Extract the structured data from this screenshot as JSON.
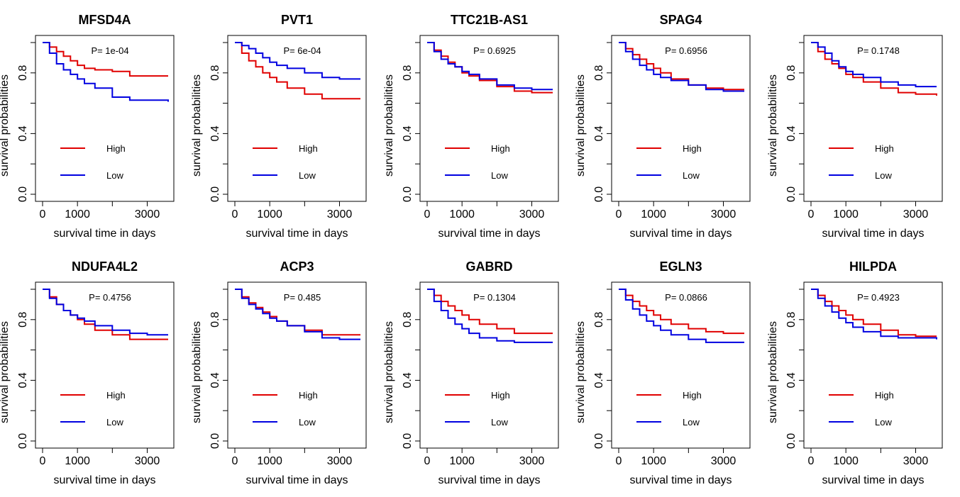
{
  "chart_data": [
    {
      "type": "line",
      "title": "MFSD4A",
      "pvalue": "P= 1e-04",
      "xlabel": "survival time in days",
      "ylabel": "survival probabilities",
      "xlim": [
        0,
        3600
      ],
      "ylim": [
        0,
        1
      ],
      "xticks": [
        0,
        1000,
        3000
      ],
      "xtick_labels": [
        "0",
        "1000",
        "3000"
      ],
      "yticks": [
        0,
        0.4,
        0.8
      ],
      "ytick_labels": [
        "0.0",
        "0.4",
        "0.8"
      ],
      "legend_position": "bottom-left",
      "colors": {
        "High": "#e00000",
        "Low": "#0000e0"
      },
      "series": [
        {
          "name": "High",
          "x": [
            0,
            200,
            400,
            600,
            800,
            1000,
            1200,
            1500,
            2000,
            2500,
            3000,
            3600
          ],
          "values": [
            1,
            0.97,
            0.94,
            0.91,
            0.88,
            0.85,
            0.83,
            0.82,
            0.81,
            0.78,
            0.78,
            0.78
          ]
        },
        {
          "name": "Low",
          "x": [
            0,
            200,
            400,
            600,
            800,
            1000,
            1200,
            1500,
            2000,
            2500,
            3000,
            3600
          ],
          "values": [
            1,
            0.93,
            0.86,
            0.82,
            0.79,
            0.76,
            0.73,
            0.7,
            0.64,
            0.62,
            0.62,
            0.61
          ]
        }
      ]
    },
    {
      "type": "line",
      "title": "PVT1",
      "pvalue": "P= 6e-04",
      "xlabel": "survival time in days",
      "ylabel": "survival probabilities",
      "xlim": [
        0,
        3600
      ],
      "ylim": [
        0,
        1
      ],
      "xticks": [
        0,
        1000,
        3000
      ],
      "xtick_labels": [
        "0",
        "1000",
        "3000"
      ],
      "yticks": [
        0,
        0.4,
        0.8
      ],
      "ytick_labels": [
        "0.0",
        "0.4",
        "0.8"
      ],
      "legend_position": "bottom-left",
      "colors": {
        "High": "#e00000",
        "Low": "#0000e0"
      },
      "series": [
        {
          "name": "High",
          "x": [
            0,
            200,
            400,
            600,
            800,
            1000,
            1200,
            1500,
            2000,
            2500,
            3000,
            3600
          ],
          "values": [
            1,
            0.93,
            0.88,
            0.84,
            0.8,
            0.77,
            0.74,
            0.7,
            0.66,
            0.63,
            0.63,
            0.63
          ]
        },
        {
          "name": "Low",
          "x": [
            0,
            200,
            400,
            600,
            800,
            1000,
            1200,
            1500,
            2000,
            2500,
            3000,
            3600
          ],
          "values": [
            1,
            0.98,
            0.96,
            0.93,
            0.9,
            0.87,
            0.85,
            0.83,
            0.8,
            0.77,
            0.76,
            0.76
          ]
        }
      ]
    },
    {
      "type": "line",
      "title": "TTC21B-AS1",
      "pvalue": "P= 0.6925",
      "xlabel": "survival time in days",
      "ylabel": "survival probabilities",
      "xlim": [
        0,
        3600
      ],
      "ylim": [
        0,
        1
      ],
      "xticks": [
        0,
        1000,
        3000
      ],
      "xtick_labels": [
        "0",
        "1000",
        "3000"
      ],
      "yticks": [
        0,
        0.4,
        0.8
      ],
      "ytick_labels": [
        "0.0",
        "0.4",
        "0.8"
      ],
      "legend_position": "bottom-left",
      "colors": {
        "High": "#e00000",
        "Low": "#0000e0"
      },
      "series": [
        {
          "name": "High",
          "x": [
            0,
            200,
            400,
            600,
            800,
            1000,
            1200,
            1500,
            2000,
            2500,
            3000,
            3600
          ],
          "values": [
            1,
            0.95,
            0.91,
            0.87,
            0.84,
            0.8,
            0.78,
            0.75,
            0.71,
            0.68,
            0.67,
            0.67
          ]
        },
        {
          "name": "Low",
          "x": [
            0,
            200,
            400,
            600,
            800,
            1000,
            1200,
            1500,
            2000,
            2500,
            3000,
            3600
          ],
          "values": [
            1,
            0.94,
            0.89,
            0.86,
            0.84,
            0.81,
            0.79,
            0.76,
            0.72,
            0.7,
            0.69,
            0.69
          ]
        }
      ]
    },
    {
      "type": "line",
      "title": "SPAG4",
      "pvalue": "P= 0.6956",
      "xlabel": "survival time in days",
      "ylabel": "survival probabilities",
      "xlim": [
        0,
        3600
      ],
      "ylim": [
        0,
        1
      ],
      "xticks": [
        0,
        1000,
        3000
      ],
      "xtick_labels": [
        "0",
        "1000",
        "3000"
      ],
      "yticks": [
        0,
        0.4,
        0.8
      ],
      "ytick_labels": [
        "0.0",
        "0.4",
        "0.8"
      ],
      "legend_position": "bottom-left",
      "colors": {
        "High": "#e00000",
        "Low": "#0000e0"
      },
      "series": [
        {
          "name": "High",
          "x": [
            0,
            200,
            400,
            600,
            800,
            1000,
            1200,
            1500,
            2000,
            2500,
            3000,
            3600
          ],
          "values": [
            1,
            0.96,
            0.92,
            0.89,
            0.86,
            0.83,
            0.8,
            0.76,
            0.72,
            0.7,
            0.69,
            0.69
          ]
        },
        {
          "name": "Low",
          "x": [
            0,
            200,
            400,
            600,
            800,
            1000,
            1200,
            1500,
            2000,
            2500,
            3000,
            3600
          ],
          "values": [
            1,
            0.94,
            0.89,
            0.85,
            0.82,
            0.79,
            0.77,
            0.75,
            0.72,
            0.69,
            0.68,
            0.68
          ]
        }
      ]
    },
    {
      "type": "line",
      "title": "",
      "pvalue": "P= 0.1748",
      "xlabel": "survival time in days",
      "ylabel": "survival probabilities",
      "xlim": [
        0,
        3600
      ],
      "ylim": [
        0,
        1
      ],
      "xticks": [
        0,
        1000,
        3000
      ],
      "xtick_labels": [
        "0",
        "1000",
        "3000"
      ],
      "yticks": [
        0,
        0.4,
        0.8
      ],
      "ytick_labels": [
        "0.0",
        "0.4",
        "0.8"
      ],
      "legend_position": "bottom-left",
      "colors": {
        "High": "#e00000",
        "Low": "#0000e0"
      },
      "series": [
        {
          "name": "High",
          "x": [
            0,
            200,
            400,
            600,
            800,
            1000,
            1200,
            1500,
            2000,
            2500,
            3000,
            3600
          ],
          "values": [
            1,
            0.94,
            0.89,
            0.86,
            0.83,
            0.79,
            0.77,
            0.74,
            0.7,
            0.67,
            0.66,
            0.65
          ]
        },
        {
          "name": "Low",
          "x": [
            0,
            200,
            400,
            600,
            800,
            1000,
            1200,
            1500,
            2000,
            2500,
            3000,
            3600
          ],
          "values": [
            1,
            0.97,
            0.93,
            0.88,
            0.84,
            0.81,
            0.79,
            0.77,
            0.74,
            0.72,
            0.71,
            0.71
          ]
        }
      ]
    },
    {
      "type": "line",
      "title": "NDUFA4L2",
      "pvalue": "P= 0.4756",
      "xlabel": "survival time in days",
      "ylabel": "survival probabilities",
      "xlim": [
        0,
        3600
      ],
      "ylim": [
        0,
        1
      ],
      "xticks": [
        0,
        1000,
        3000
      ],
      "xtick_labels": [
        "0",
        "1000",
        "3000"
      ],
      "yticks": [
        0,
        0.4,
        0.8
      ],
      "ytick_labels": [
        "0.0",
        "0.4",
        "0.8"
      ],
      "legend_position": "bottom-left",
      "colors": {
        "High": "#e00000",
        "Low": "#0000e0"
      },
      "series": [
        {
          "name": "High",
          "x": [
            0,
            200,
            400,
            600,
            800,
            1000,
            1200,
            1500,
            2000,
            2500,
            3000,
            3600
          ],
          "values": [
            1,
            0.95,
            0.9,
            0.86,
            0.83,
            0.8,
            0.77,
            0.73,
            0.7,
            0.67,
            0.67,
            0.67
          ]
        },
        {
          "name": "Low",
          "x": [
            0,
            200,
            400,
            600,
            800,
            1000,
            1200,
            1500,
            2000,
            2500,
            3000,
            3600
          ],
          "values": [
            1,
            0.94,
            0.9,
            0.86,
            0.83,
            0.81,
            0.79,
            0.76,
            0.73,
            0.71,
            0.7,
            0.7
          ]
        }
      ]
    },
    {
      "type": "line",
      "title": "ACP3",
      "pvalue": "P= 0.485",
      "xlabel": "survival time in days",
      "ylabel": "survival probabilities",
      "xlim": [
        0,
        3600
      ],
      "ylim": [
        0,
        1
      ],
      "xticks": [
        0,
        1000,
        3000
      ],
      "xtick_labels": [
        "0",
        "1000",
        "3000"
      ],
      "yticks": [
        0,
        0.4,
        0.8
      ],
      "ytick_labels": [
        "0.0",
        "0.4",
        "0.8"
      ],
      "legend_position": "bottom-left",
      "colors": {
        "High": "#e00000",
        "Low": "#0000e0"
      },
      "series": [
        {
          "name": "High",
          "x": [
            0,
            200,
            400,
            600,
            800,
            1000,
            1200,
            1500,
            2000,
            2500,
            3000,
            3600
          ],
          "values": [
            1,
            0.95,
            0.91,
            0.88,
            0.85,
            0.82,
            0.79,
            0.76,
            0.73,
            0.7,
            0.7,
            0.7
          ]
        },
        {
          "name": "Low",
          "x": [
            0,
            200,
            400,
            600,
            800,
            1000,
            1200,
            1500,
            2000,
            2500,
            3000,
            3600
          ],
          "values": [
            1,
            0.94,
            0.9,
            0.87,
            0.84,
            0.81,
            0.79,
            0.76,
            0.72,
            0.68,
            0.67,
            0.67
          ]
        }
      ]
    },
    {
      "type": "line",
      "title": "GABRD",
      "pvalue": "P= 0.1304",
      "xlabel": "survival time in days",
      "ylabel": "survival probabilities",
      "xlim": [
        0,
        3600
      ],
      "ylim": [
        0,
        1
      ],
      "xticks": [
        0,
        1000,
        3000
      ],
      "xtick_labels": [
        "0",
        "1000",
        "3000"
      ],
      "yticks": [
        0,
        0.4,
        0.8
      ],
      "ytick_labels": [
        "0.0",
        "0.4",
        "0.8"
      ],
      "legend_position": "bottom-left",
      "colors": {
        "High": "#e00000",
        "Low": "#0000e0"
      },
      "series": [
        {
          "name": "High",
          "x": [
            0,
            200,
            400,
            600,
            800,
            1000,
            1200,
            1500,
            2000,
            2500,
            3000,
            3600
          ],
          "values": [
            1,
            0.96,
            0.92,
            0.89,
            0.86,
            0.83,
            0.8,
            0.77,
            0.74,
            0.71,
            0.71,
            0.71
          ]
        },
        {
          "name": "Low",
          "x": [
            0,
            200,
            400,
            600,
            800,
            1000,
            1200,
            1500,
            2000,
            2500,
            3000,
            3600
          ],
          "values": [
            1,
            0.92,
            0.86,
            0.81,
            0.77,
            0.74,
            0.71,
            0.68,
            0.66,
            0.65,
            0.65,
            0.65
          ]
        }
      ]
    },
    {
      "type": "line",
      "title": "EGLN3",
      "pvalue": "P= 0.0866",
      "xlabel": "survival time in days",
      "ylabel": "survival probabilities",
      "xlim": [
        0,
        3600
      ],
      "ylim": [
        0,
        1
      ],
      "xticks": [
        0,
        1000,
        3000
      ],
      "xtick_labels": [
        "0",
        "1000",
        "3000"
      ],
      "yticks": [
        0,
        0.4,
        0.8
      ],
      "ytick_labels": [
        "0.0",
        "0.4",
        "0.8"
      ],
      "legend_position": "bottom-left",
      "colors": {
        "High": "#e00000",
        "Low": "#0000e0"
      },
      "series": [
        {
          "name": "High",
          "x": [
            0,
            200,
            400,
            600,
            800,
            1000,
            1200,
            1500,
            2000,
            2500,
            3000,
            3600
          ],
          "values": [
            1,
            0.96,
            0.92,
            0.89,
            0.86,
            0.83,
            0.8,
            0.77,
            0.74,
            0.72,
            0.71,
            0.71
          ]
        },
        {
          "name": "Low",
          "x": [
            0,
            200,
            400,
            600,
            800,
            1000,
            1200,
            1500,
            2000,
            2500,
            3000,
            3600
          ],
          "values": [
            1,
            0.93,
            0.87,
            0.83,
            0.79,
            0.76,
            0.73,
            0.7,
            0.67,
            0.65,
            0.65,
            0.65
          ]
        }
      ]
    },
    {
      "type": "line",
      "title": "HILPDA",
      "pvalue": "P= 0.4923",
      "xlabel": "survival time in days",
      "ylabel": "survival probabilities",
      "xlim": [
        0,
        3600
      ],
      "ylim": [
        0,
        1
      ],
      "xticks": [
        0,
        1000,
        3000
      ],
      "xtick_labels": [
        "0",
        "1000",
        "3000"
      ],
      "yticks": [
        0,
        0.4,
        0.8
      ],
      "ytick_labels": [
        "0.0",
        "0.4",
        "0.8"
      ],
      "legend_position": "bottom-left",
      "colors": {
        "High": "#e00000",
        "Low": "#0000e0"
      },
      "series": [
        {
          "name": "High",
          "x": [
            0,
            200,
            400,
            600,
            800,
            1000,
            1200,
            1500,
            2000,
            2500,
            3000,
            3600
          ],
          "values": [
            1,
            0.96,
            0.92,
            0.89,
            0.86,
            0.83,
            0.8,
            0.77,
            0.73,
            0.7,
            0.69,
            0.69
          ]
        },
        {
          "name": "Low",
          "x": [
            0,
            200,
            400,
            600,
            800,
            1000,
            1200,
            1500,
            2000,
            2500,
            3000,
            3600
          ],
          "values": [
            1,
            0.94,
            0.89,
            0.85,
            0.81,
            0.78,
            0.75,
            0.72,
            0.69,
            0.68,
            0.68,
            0.67
          ]
        }
      ]
    }
  ]
}
